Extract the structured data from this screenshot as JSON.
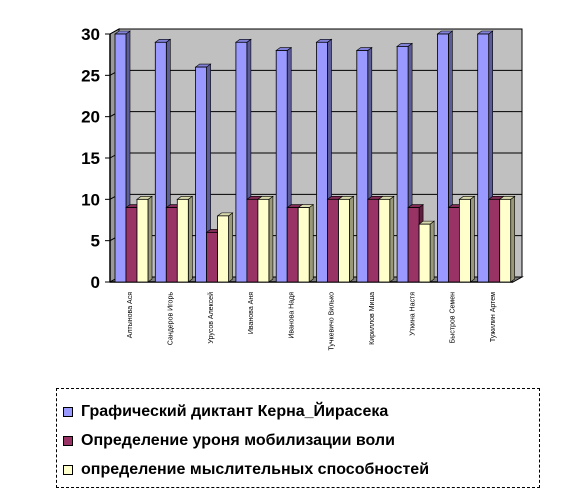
{
  "chart_data": {
    "type": "bar",
    "categories": [
      "Алтынова Ася",
      "Сандеров Игорь",
      "Урусов Алексей",
      "Иванова Аня",
      "Иванова Надя",
      "Тучкевичо Вилько",
      "Кириллов Миша",
      "Уткина Настя",
      "Быстров Семен",
      "Тужилин Артем"
    ],
    "series": [
      {
        "name": "Графический диктант Керна_Йирасека",
        "color": "#9999FF",
        "values": [
          30,
          29,
          26,
          29,
          28,
          29,
          28,
          28.5,
          30,
          30
        ]
      },
      {
        "name": "Определение уроня мобилизации воли",
        "color": "#993366",
        "values": [
          9,
          9,
          6,
          10,
          9,
          10,
          10,
          9,
          9,
          10
        ]
      },
      {
        "name": "определение мыслительных способностей",
        "color": "#FFFFCC",
        "values": [
          10,
          10,
          8,
          10,
          9,
          10,
          10,
          7,
          10,
          10
        ]
      }
    ],
    "yticks": [
      "0",
      "5",
      "10",
      "15",
      "20",
      "25",
      "30"
    ],
    "ylim": [
      0,
      30
    ],
    "grid": true,
    "legend_position": "bottom",
    "plot_background": "#C0C0C0"
  }
}
